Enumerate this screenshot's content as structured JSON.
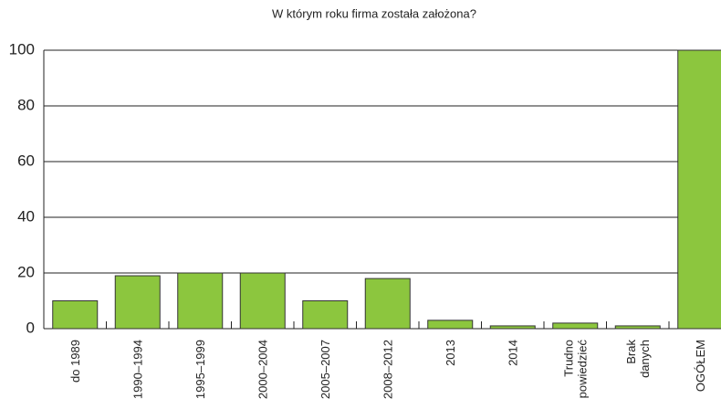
{
  "chart_data": {
    "type": "bar",
    "title": "W którym roku firma została założona?",
    "categories": [
      "do 1989",
      "1990–1994",
      "1995–1999",
      "2000–2004",
      "2005–2007",
      "2008–2012",
      "2013",
      "2014",
      "Trudno\npowiedzieć",
      "Brak\ndanych",
      "OGÓŁEM"
    ],
    "values": [
      10,
      19,
      20,
      20,
      10,
      18,
      3,
      1,
      2,
      1,
      100
    ],
    "color": "#8cc63e",
    "ylim": [
      0,
      100
    ],
    "yticks": [
      0,
      20,
      40,
      60,
      80,
      100
    ],
    "grid": true
  }
}
